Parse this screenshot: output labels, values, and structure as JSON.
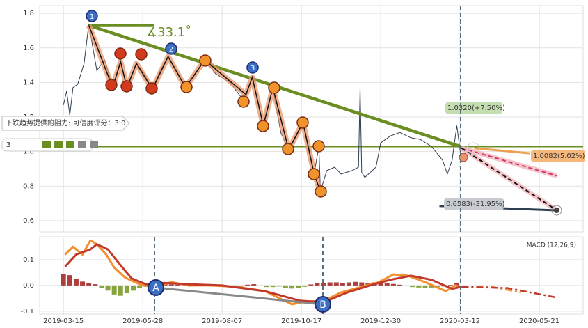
{
  "chart_data": [
    {
      "type": "line",
      "xlim": [
        -15,
        327.6
      ],
      "ylim": [
        0.535,
        1.845
      ],
      "yticks": [
        0.6,
        0.8,
        {
          "value": 1.0,
          "label": "1.0"
        },
        1.2,
        1.4,
        1.6,
        1.8
      ],
      "grid": true,
      "x": [
        0,
        2,
        4,
        6,
        9,
        13,
        16,
        18,
        21,
        26,
        31,
        36,
        40,
        46,
        51,
        56,
        61,
        66,
        72,
        77,
        83,
        89,
        96,
        105,
        114,
        119,
        126,
        132,
        137,
        142,
        147,
        151,
        155,
        158,
        161,
        162,
        166,
        171,
        175,
        182,
        186,
        187,
        188,
        190,
        197,
        200,
        206,
        212,
        219,
        225,
        232,
        239,
        242,
        245,
        248,
        250,
        251
      ],
      "series": [
        {
          "color": "#2f3e50",
          "values": [
            1.27,
            1.35,
            1.21,
            1.37,
            1.39,
            1.51,
            1.74,
            1.63,
            1.47,
            1.53,
            1.37,
            1.52,
            1.37,
            1.51,
            1.45,
            1.36,
            1.47,
            1.55,
            1.45,
            1.37,
            1.45,
            1.53,
            1.45,
            1.4,
            1.29,
            1.43,
            1.15,
            1.37,
            1.11,
            1.01,
            1.09,
            1.17,
            0.99,
            0.87,
            1.03,
            0.77,
            0.89,
            0.91,
            0.87,
            0.89,
            0.91,
            1.37,
            0.88,
            0.85,
            0.91,
            1.05,
            1.09,
            1.11,
            1.08,
            1.07,
            1.03,
            0.95,
            0.87,
            0.95,
            1.15,
            1.01,
            0.97
          ]
        }
      ],
      "pattern": {
        "color": "#e8956a",
        "x": [
          16,
          31,
          36,
          40,
          46,
          56,
          66,
          77,
          89,
          115,
          119,
          126,
          132,
          142,
          151,
          158,
          162
        ],
        "values": [
          1.73,
          1.37,
          1.52,
          1.37,
          1.51,
          1.36,
          1.55,
          1.37,
          1.53,
          1.33,
          1.43,
          1.15,
          1.37,
          1.01,
          1.17,
          0.87,
          0.77
        ]
      },
      "trendlines": [
        {
          "color": "#6b8e23",
          "x": [
            16,
            250
          ],
          "values": [
            1.73,
            1.03
          ]
        },
        {
          "color": "#6b8e23",
          "x": [
            16,
            57
          ],
          "values": [
            1.73,
            1.73
          ]
        }
      ],
      "resistance": {
        "color": "#6b8e23",
        "value": 1.03
      },
      "projections": [
        {
          "color": "#d6336c",
          "x": [
            251,
            311
          ],
          "values": [
            1.02,
            0.86
          ]
        },
        {
          "color": "#111111",
          "x": [
            251,
            311
          ],
          "values": [
            1.02,
            0.66
          ]
        },
        {
          "color": "#f0a050",
          "x": [
            259,
            294
          ],
          "values": [
            1.02,
            0.99
          ]
        },
        {
          "color": "#2f3e50",
          "x": [
            237,
            311
          ],
          "values": [
            0.685,
            0.66
          ]
        }
      ],
      "annotations": {
        "angle": "∡33.1˚",
        "resistance_label": "下跌趋势提供的阻力: 可信度评分：3.0",
        "score": "3",
        "up_target": "1.0320(+7.50%)",
        "mid_target": "1.0082(5.02%)",
        "down_target": "0.6583(-31.95%)",
        "waves": [
          "1",
          "2",
          "3"
        ]
      }
    },
    {
      "type": "macd",
      "title": "MACD (12,26,9)",
      "xlim": [
        -15,
        327.6
      ],
      "ylim": [
        -0.111,
        0.189
      ],
      "xticks": [
        {
          "value": 0,
          "label": "2019-03-15"
        },
        {
          "value": 50,
          "label": "2019-05-28"
        },
        {
          "value": 100,
          "label": "2019-08-07"
        },
        {
          "value": 150,
          "label": "2019-10-17"
        },
        {
          "value": 200,
          "label": "2019-12-30"
        },
        {
          "value": 250,
          "label": "2020-03-12"
        },
        {
          "value": 300,
          "label": "2020-05-21"
        }
      ],
      "yticks": [
        -0.1,
        {
          "value": 0,
          "label": "0.0"
        },
        0.1
      ],
      "grid": true,
      "series": [
        {
          "color": "#f28e2b",
          "x": [
            1,
            6,
            12,
            17,
            21,
            27,
            32,
            39,
            48,
            57,
            68,
            79,
            92,
            109,
            127,
            144,
            153,
            164,
            175,
            188,
            199,
            208,
            217,
            228,
            241,
            247,
            251
          ],
          "values": [
            0.12,
            0.15,
            0.12,
            0.175,
            0.16,
            0.12,
            0.07,
            0.03,
            0.005,
            -0.008,
            0.013,
            0,
            0,
            -0.005,
            -0.022,
            -0.073,
            -0.062,
            -0.06,
            -0.027,
            -0.005,
            0.013,
            0.043,
            0.038,
            0.013,
            -0.022,
            0,
            -0.008
          ]
        },
        {
          "color": "#c0392b",
          "x": [
            1,
            8,
            17,
            21,
            28,
            35,
            43,
            52,
            63,
            79,
            100,
            127,
            149,
            164,
            179,
            193,
            206,
            219,
            232,
            245,
            251
          ],
          "values": [
            0.073,
            0.12,
            0.14,
            0.16,
            0.14,
            0.086,
            0.027,
            0.005,
            0.01,
            0.005,
            0,
            -0.022,
            -0.059,
            -0.065,
            -0.027,
            0,
            0.022,
            0.038,
            0.022,
            -0.013,
            -0.005
          ]
        }
      ],
      "projections": [
        {
          "color": "#f28e2b",
          "x": [
            251,
            270,
            288
          ],
          "values": [
            -0.005,
            -0.005,
            -0.027
          ]
        },
        {
          "color": "#c0392b",
          "x": [
            251,
            280,
            310
          ],
          "values": [
            -0.005,
            -0.01,
            -0.046
          ]
        }
      ],
      "histogram": {
        "positive_color": "#a52a2a",
        "negative_color": "#7a9a2a",
        "x": [
          0,
          4,
          8,
          12,
          16,
          20,
          24,
          28,
          32,
          36,
          40,
          44,
          48,
          52,
          56,
          60,
          64,
          68,
          72,
          76,
          80,
          84,
          88,
          92,
          96,
          100,
          104,
          108,
          112,
          116,
          120,
          124,
          128,
          132,
          136,
          140,
          144,
          148,
          152,
          156,
          160,
          164,
          168,
          172,
          176,
          180,
          184,
          188,
          192,
          196,
          200,
          204,
          208,
          212,
          216,
          220,
          224,
          228,
          232,
          236,
          240,
          244,
          248
        ],
        "values": [
          0.045,
          0.04,
          0.025,
          0.015,
          0.01,
          0.005,
          -0.01,
          -0.02,
          -0.035,
          -0.04,
          -0.03,
          -0.02,
          -0.01,
          -0.005,
          0.005,
          0.01,
          0.008,
          0.004,
          0.003,
          -0.003,
          -0.004,
          -0.003,
          0.002,
          0.003,
          0.002,
          -0.002,
          -0.003,
          -0.004,
          -0.004,
          0.003,
          0.005,
          -0.003,
          -0.006,
          -0.006,
          -0.004,
          -0.01,
          -0.012,
          -0.01,
          -0.005,
          0.004,
          0.008,
          0.01,
          0.012,
          0.012,
          0.01,
          0.012,
          0.014,
          0.012,
          0.01,
          0.012,
          0.01,
          0.008,
          0.006,
          0.003,
          -0.002,
          -0.006,
          -0.008,
          -0.01,
          -0.008,
          -0.006,
          -0.004,
          0.002,
          0.01
        ]
      },
      "divergence": [
        "A",
        "B"
      ]
    }
  ]
}
